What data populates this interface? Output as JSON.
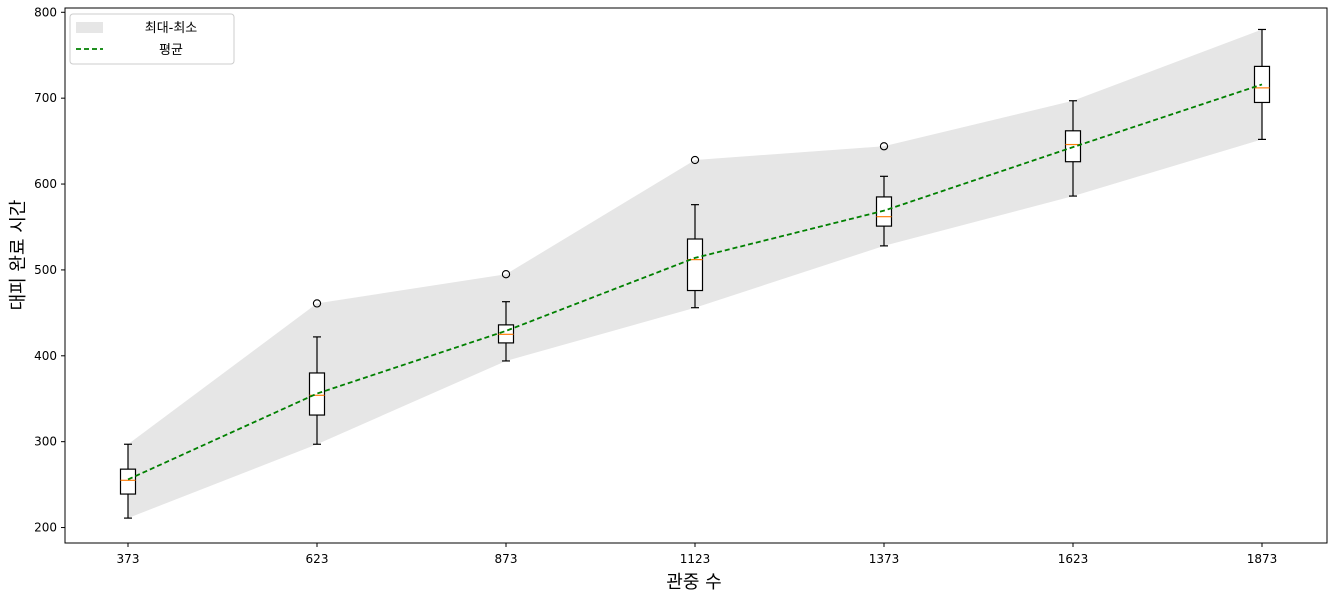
{
  "chart_data": {
    "type": "box",
    "title": "",
    "xlabel": "관중 수",
    "ylabel": "대피 완료 시간",
    "categories": [
      "373",
      "623",
      "873",
      "1123",
      "1373",
      "1623",
      "1873"
    ],
    "ylim": [
      182,
      805
    ],
    "yticks": [
      200,
      300,
      400,
      500,
      600,
      700,
      800
    ],
    "grid": false,
    "legend_position": "top-left",
    "boxes": [
      {
        "whisker_low": 211,
        "q1": 239,
        "median": 255,
        "q3": 268,
        "whisker_high": 297,
        "outliers": []
      },
      {
        "whisker_low": 297,
        "q1": 331,
        "median": 354,
        "q3": 380,
        "whisker_high": 422,
        "outliers": [
          461
        ]
      },
      {
        "whisker_low": 394,
        "q1": 415,
        "median": 425,
        "q3": 436,
        "whisker_high": 463,
        "outliers": [
          495
        ]
      },
      {
        "whisker_low": 456,
        "q1": 476,
        "median": 512,
        "q3": 536,
        "whisker_high": 576,
        "outliers": [
          628
        ]
      },
      {
        "whisker_low": 528,
        "q1": 551,
        "median": 562,
        "q3": 585,
        "whisker_high": 609,
        "outliers": [
          644
        ]
      },
      {
        "whisker_low": 586,
        "q1": 626,
        "median": 646,
        "q3": 662,
        "whisker_high": 697,
        "outliers": []
      },
      {
        "whisker_low": 652,
        "q1": 695,
        "median": 712,
        "q3": 737,
        "whisker_high": 780,
        "outliers": []
      }
    ],
    "band": {
      "name": "최대-최소",
      "min": [
        211,
        297,
        394,
        456,
        528,
        586,
        652
      ],
      "max": [
        297,
        461,
        495,
        628,
        644,
        697,
        780
      ]
    },
    "mean_line": {
      "name": "평균",
      "values": [
        256,
        356,
        429,
        514,
        569,
        643,
        716
      ]
    },
    "colors": {
      "band": "#e6e6e6",
      "mean": "#008000",
      "median": "#ff7f0e",
      "box": "#000000"
    }
  }
}
